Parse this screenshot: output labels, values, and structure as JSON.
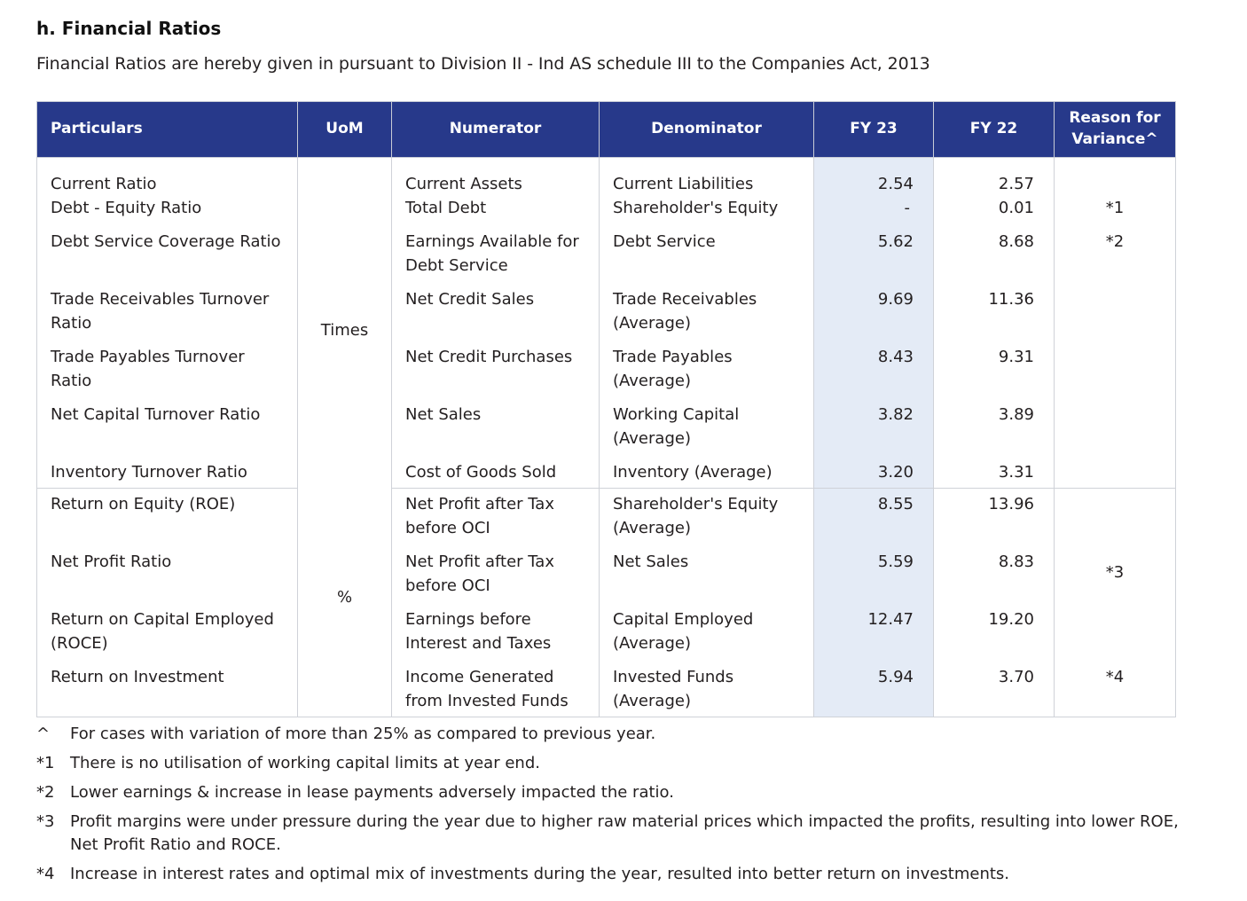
{
  "section": {
    "title": "h. Financial Ratios",
    "subtitle": "Financial Ratios are hereby given in pursuant to Division II - Ind AS schedule III to the Companies Act, 2013"
  },
  "table": {
    "headers": {
      "particulars": "Particulars",
      "uom": "UoM",
      "numerator": "Numerator",
      "denominator": "Denominator",
      "fy23": "FY 23",
      "fy22": "FY 22",
      "reason": "Reason for Variance^"
    },
    "uom_groups": [
      "Times",
      "%"
    ],
    "rows": [
      {
        "particulars": "Current Ratio",
        "numerator": "Current Assets",
        "denominator": "Current Liabilities",
        "fy23": "2.54",
        "fy22": "2.57",
        "reason": ""
      },
      {
        "particulars": "Debt - Equity Ratio",
        "numerator": "Total Debt",
        "denominator": "Shareholder's Equity",
        "fy23": "-",
        "fy22": "0.01",
        "reason": "*1"
      },
      {
        "particulars": "Debt Service Coverage Ratio",
        "numerator": "Earnings Available for Debt Service",
        "denominator": "Debt Service",
        "fy23": "5.62",
        "fy22": "8.68",
        "reason": "*2"
      },
      {
        "particulars": "Trade Receivables Turnover Ratio",
        "numerator": "Net Credit Sales",
        "denominator": "Trade Receivables (Average)",
        "fy23": "9.69",
        "fy22": "11.36",
        "reason": ""
      },
      {
        "particulars": "Trade Payables Turnover Ratio",
        "numerator": "Net Credit Purchases",
        "denominator": "Trade Payables (Average)",
        "fy23": "8.43",
        "fy22": "9.31",
        "reason": ""
      },
      {
        "particulars": "Net Capital Turnover Ratio",
        "numerator": "Net Sales",
        "denominator": "Working Capital (Average)",
        "fy23": "3.82",
        "fy22": "3.89",
        "reason": ""
      },
      {
        "particulars": "Inventory Turnover Ratio",
        "numerator": "Cost of Goods Sold",
        "denominator": "Inventory (Average)",
        "fy23": "3.20",
        "fy22": "3.31",
        "reason": ""
      },
      {
        "particulars": "Return on Equity (ROE)",
        "numerator": "Net Profit after Tax before OCI",
        "denominator": "Shareholder's Equity (Average)",
        "fy23": "8.55",
        "fy22": "13.96",
        "reason": "*3"
      },
      {
        "particulars": "Net Profit Ratio",
        "numerator": "Net Profit after Tax before OCI",
        "denominator": "Net Sales",
        "fy23": "5.59",
        "fy22": "8.83",
        "reason": ""
      },
      {
        "particulars": "Return on Capital Employed (ROCE)",
        "numerator": "Earnings before Interest and Taxes",
        "denominator": "Capital Employed (Average)",
        "fy23": "12.47",
        "fy22": "19.20",
        "reason": ""
      },
      {
        "particulars": "Return on Investment",
        "numerator": "Income Generated from Invested Funds",
        "denominator": "Invested Funds (Average)",
        "fy23": "5.94",
        "fy22": "3.70",
        "reason": "*4"
      }
    ]
  },
  "notes": [
    {
      "mark": "^",
      "text": "For cases with variation of more than 25% as compared to previous year."
    },
    {
      "mark": "*1",
      "text": "There is no utilisation of working capital limits at year end."
    },
    {
      "mark": "*2",
      "text": "Lower earnings & increase in lease payments adversely impacted the ratio."
    },
    {
      "mark": "*3",
      "text": "Profit margins were under pressure during the year due to higher raw material prices which impacted the profits, resulting into lower ROE, Net Profit Ratio and ROCE."
    },
    {
      "mark": "*4",
      "text": "Increase in interest rates and optimal mix of investments during the year, resulted into better return on investments."
    }
  ],
  "colors": {
    "header_bg": "#27398a",
    "fy23_highlight": "#e4ebf6"
  }
}
